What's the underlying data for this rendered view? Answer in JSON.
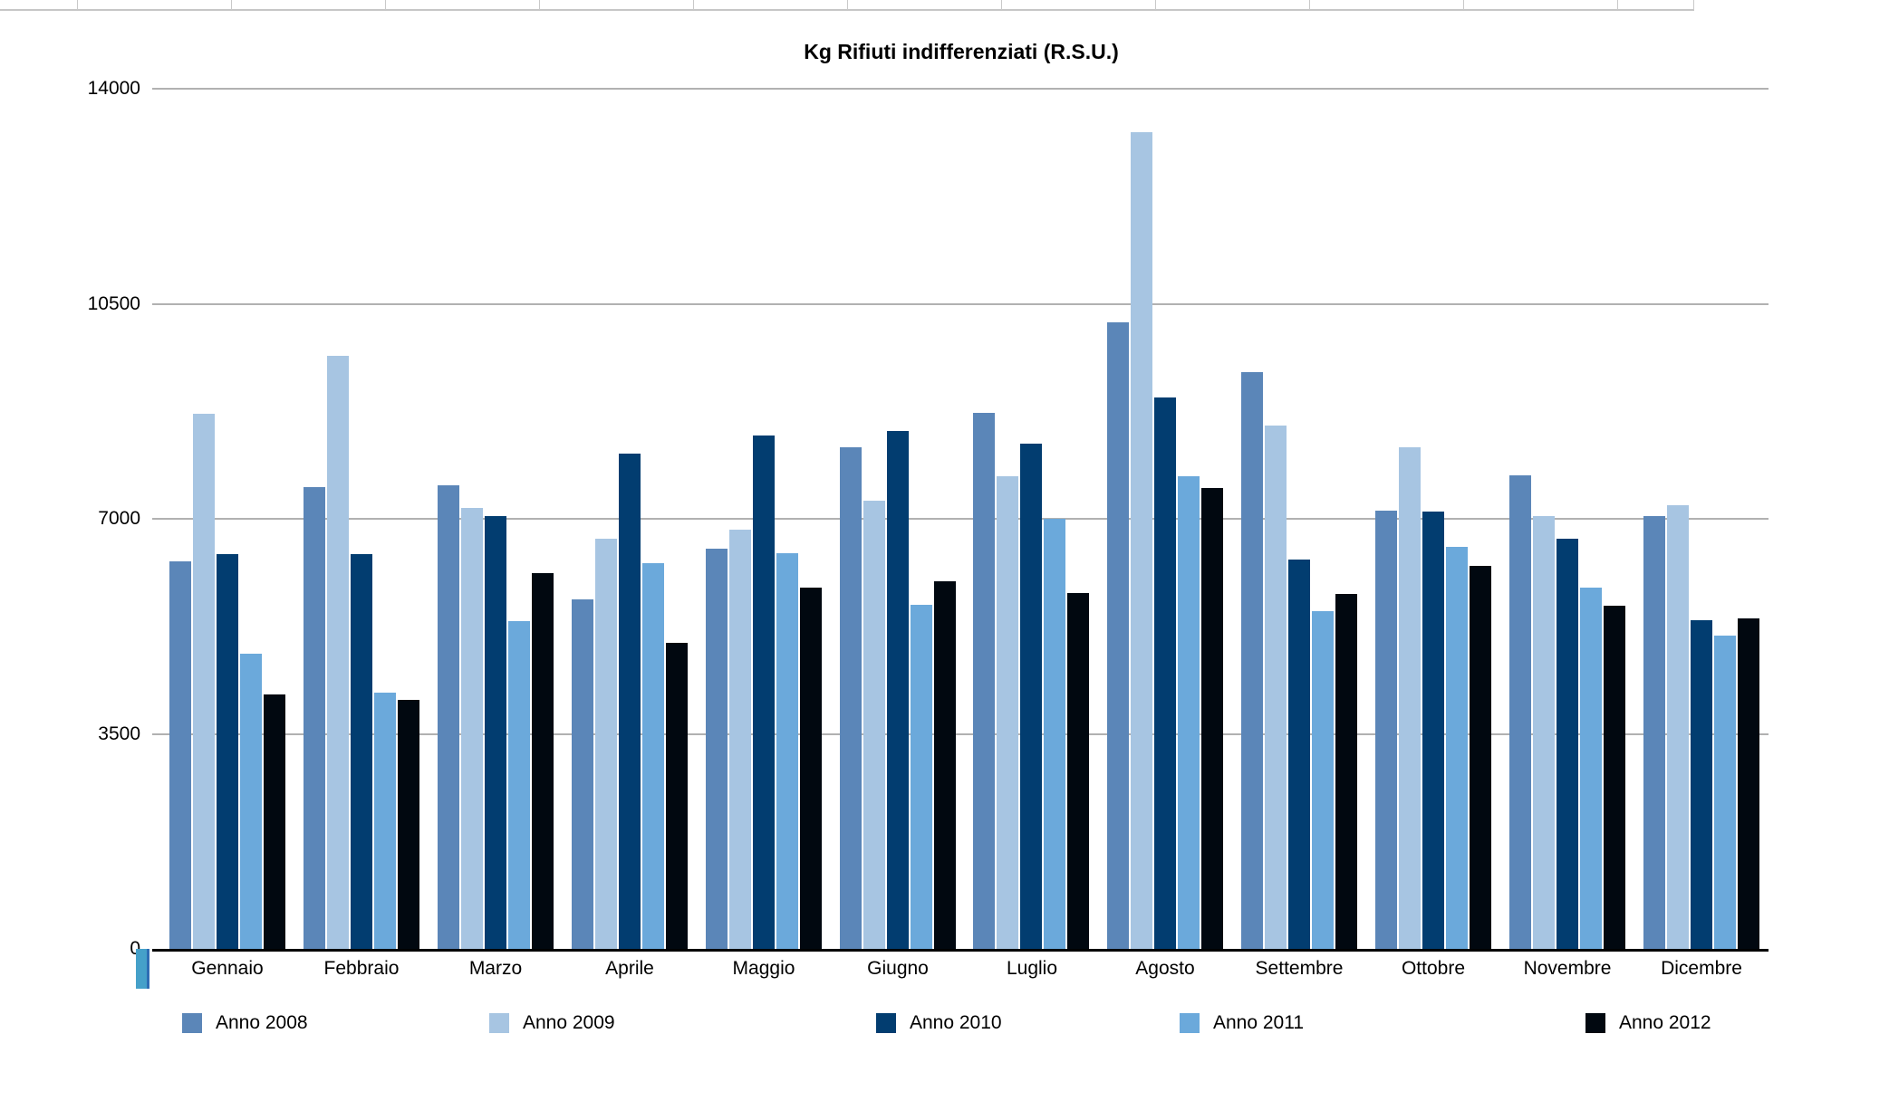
{
  "title": "Kg Rifiuti indifferenziati (R.S.U.)",
  "chart_data": {
    "type": "bar",
    "title": "Kg Rifiuti indifferenziati (R.S.U.)",
    "categories": [
      "Gennaio",
      "Febbraio",
      "Marzo",
      "Aprile",
      "Maggio",
      "Giugno",
      "Luglio",
      "Agosto",
      "Settembre",
      "Ottobre",
      "Novembre",
      "Dicembre"
    ],
    "series": [
      {
        "name": "Anno 2008",
        "color": "#5b86b8",
        "values": [
          6310,
          7510,
          7540,
          5690,
          6520,
          8160,
          8720,
          10200,
          9390,
          7130,
          7710,
          7040
        ]
      },
      {
        "name": "Anno 2009",
        "color": "#a7c5e2",
        "values": [
          8710,
          9660,
          7170,
          6680,
          6830,
          7290,
          7700,
          13290,
          8520,
          8170,
          7050,
          7220
        ]
      },
      {
        "name": "Anno 2010",
        "color": "#023d70",
        "values": [
          6430,
          6430,
          7050,
          8060,
          8350,
          8430,
          8230,
          8970,
          6340,
          7120,
          6670,
          5350
        ]
      },
      {
        "name": "Anno 2011",
        "color": "#6ba9db",
        "values": [
          4800,
          4170,
          5330,
          6280,
          6440,
          5600,
          7000,
          7700,
          5500,
          6550,
          5880,
          5100
        ]
      },
      {
        "name": "Anno 2012",
        "color": "#010810",
        "values": [
          4140,
          4060,
          6110,
          4980,
          5880,
          5980,
          5790,
          7500,
          5780,
          6240,
          5590,
          5380
        ]
      }
    ],
    "xlabel": "",
    "ylabel": "",
    "ylim": [
      0,
      14000
    ],
    "yticks": [
      0,
      3500,
      7000,
      10500,
      14000
    ],
    "grid": "horizontal",
    "legend_position": "bottom"
  }
}
